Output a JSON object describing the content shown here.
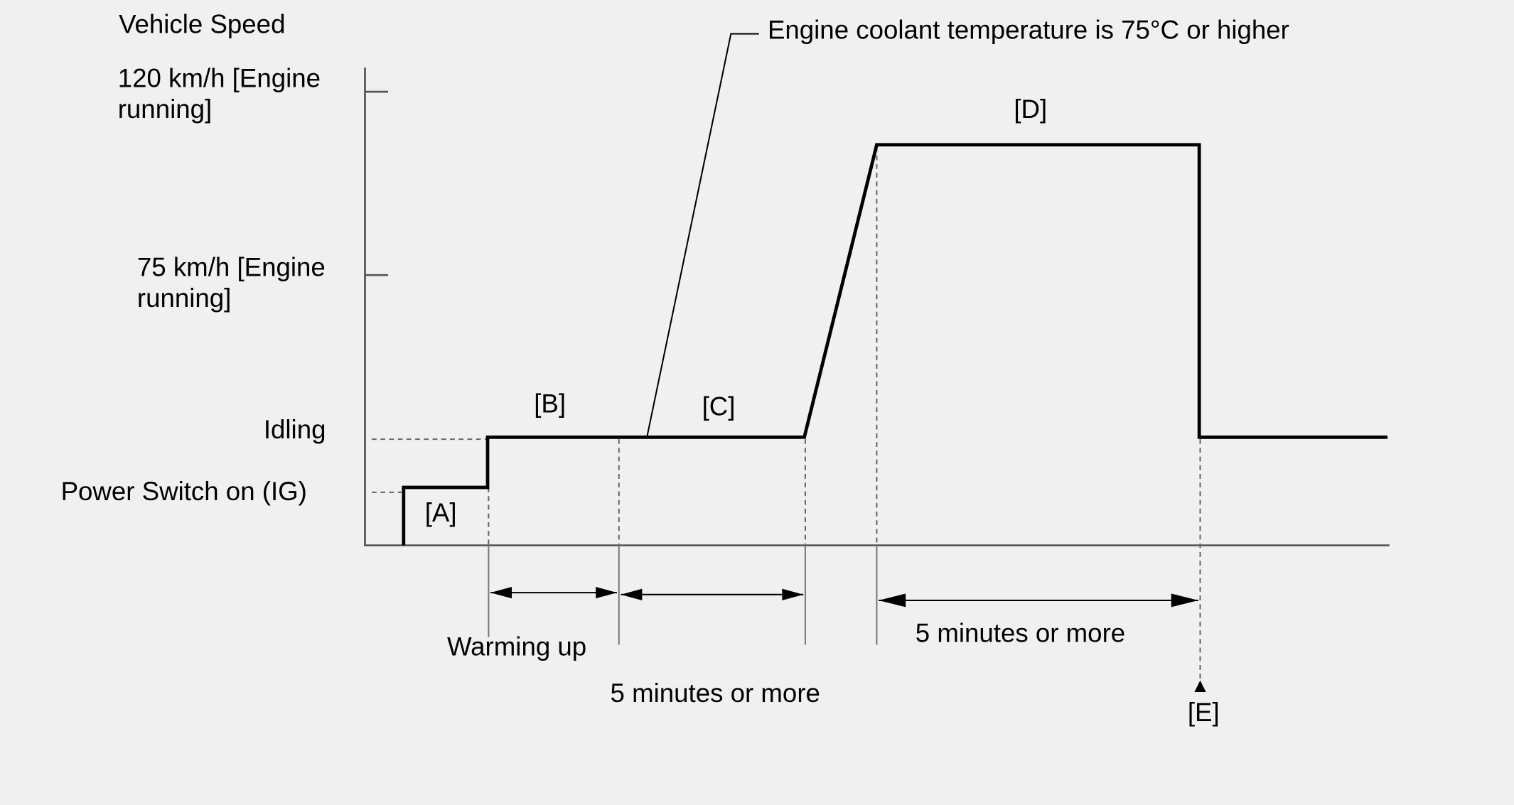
{
  "y_axis": {
    "title": "Vehicle Speed",
    "levels": [
      {
        "lines": [
          "120 km/h [Engine",
          "running]"
        ]
      },
      {
        "lines": [
          "75 km/h [Engine",
          "running]"
        ]
      },
      {
        "lines": [
          "Idling"
        ]
      },
      {
        "lines": [
          "Power Switch on (IG)"
        ]
      }
    ]
  },
  "phases": [
    "[A]",
    "[B]",
    "[C]",
    "[D]",
    "[E]"
  ],
  "annotations": {
    "coolant": "Engine coolant temperature is 75°C or higher",
    "warming_up": "Warming up",
    "duration_c": "5 minutes or more",
    "duration_d": "5 minutes or more"
  }
}
